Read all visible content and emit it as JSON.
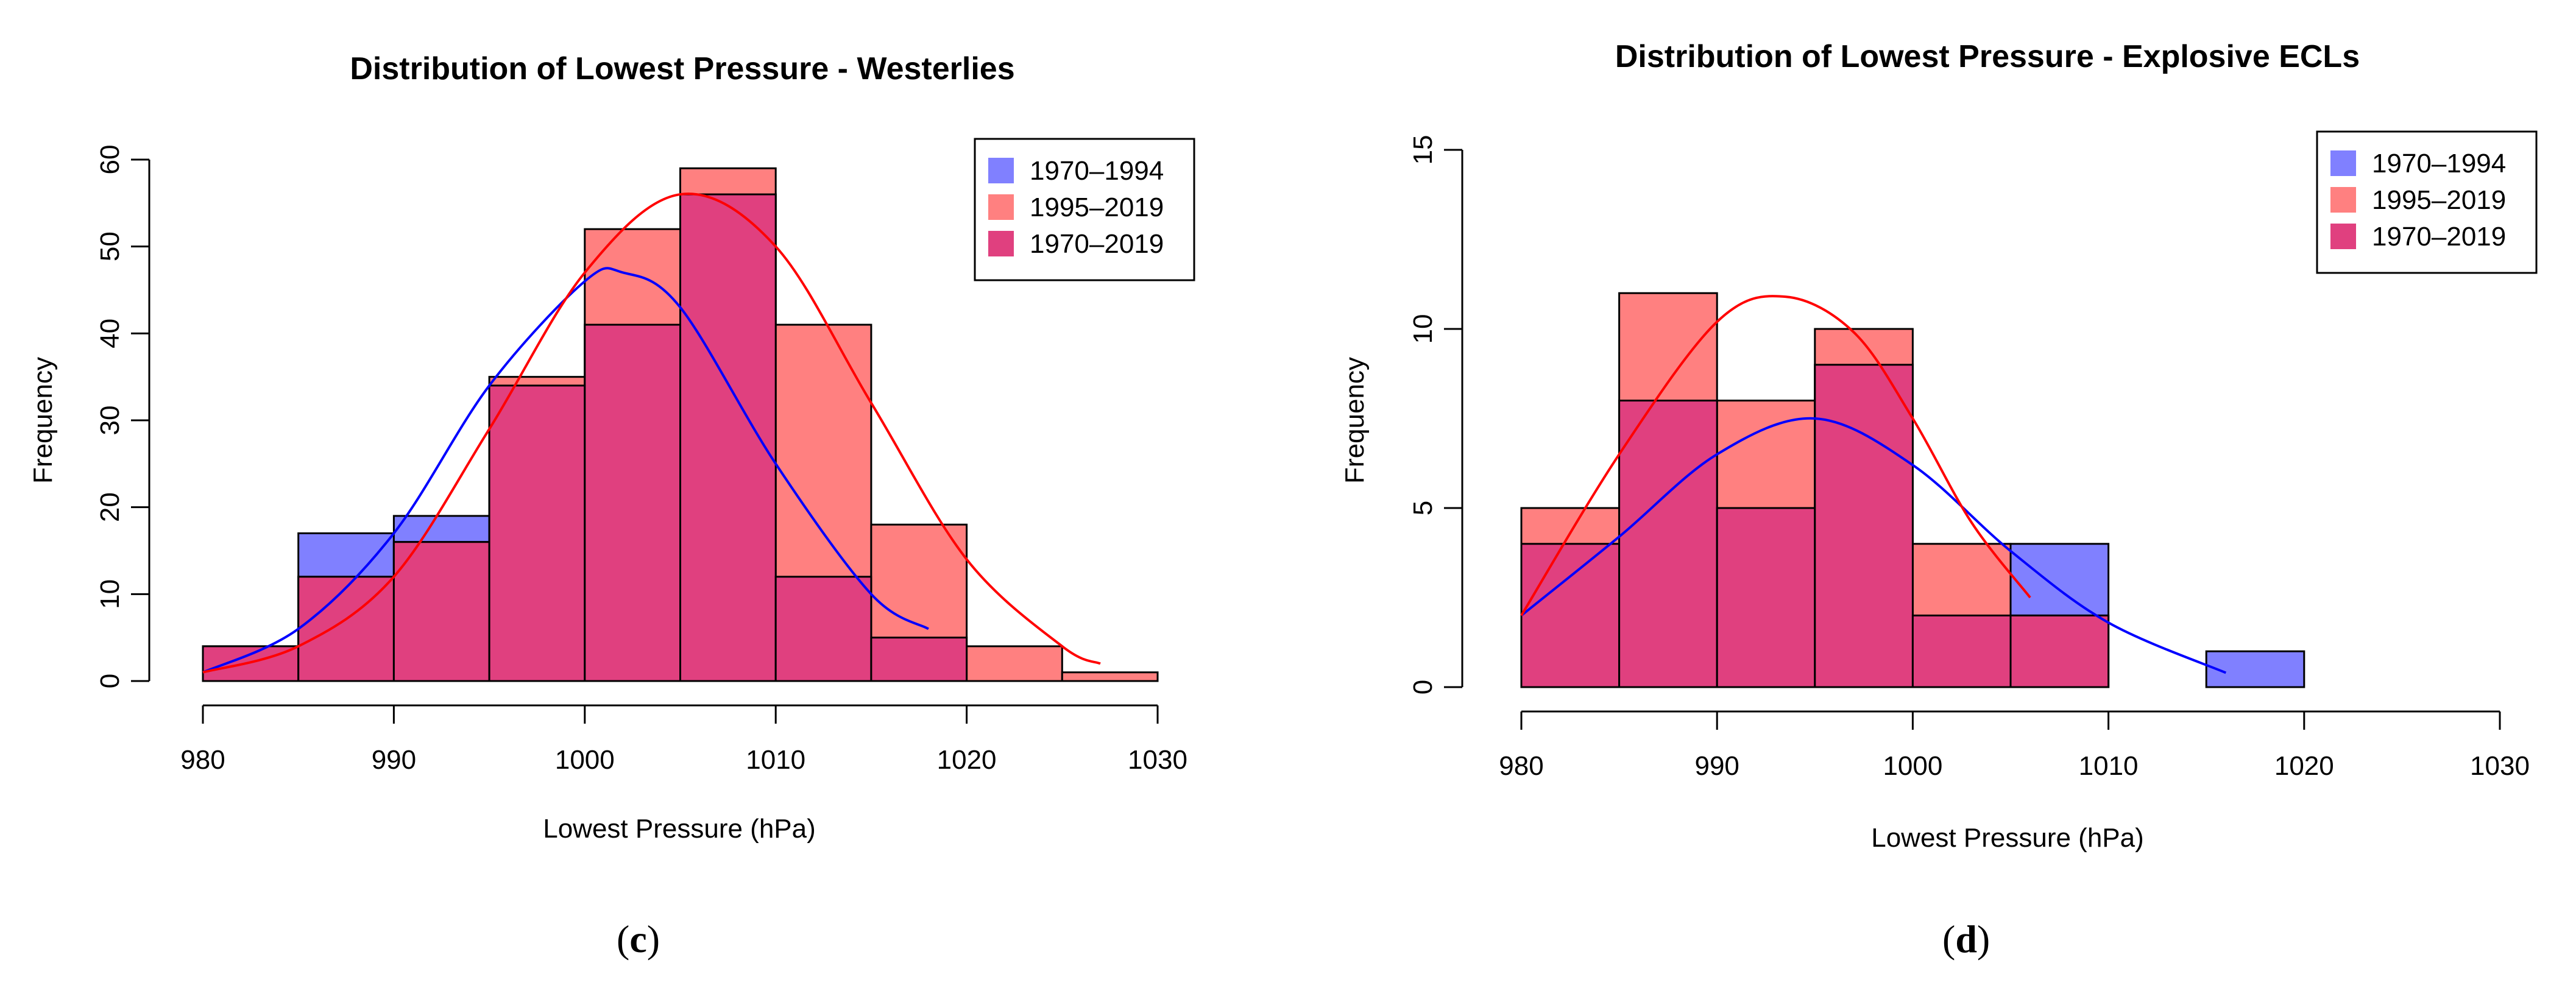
{
  "chart_data": [
    {
      "type": "bar",
      "panel": "c",
      "title": "Distribution of Lowest Pressure - Westerlies",
      "xlabel": "Lowest Pressure (hPa)",
      "ylabel": "Frequency",
      "xlim": [
        980,
        1030
      ],
      "ylim": [
        0,
        60
      ],
      "xticks": [
        980,
        990,
        1000,
        1010,
        1020,
        1030
      ],
      "yticks": [
        0,
        10,
        20,
        30,
        40,
        50,
        60
      ],
      "bin_edges": [
        980,
        985,
        990,
        995,
        1000,
        1005,
        1010,
        1015,
        1020,
        1025,
        1030
      ],
      "series": [
        {
          "name": "1970-1994",
          "color": "#8080ff",
          "values": [
            4,
            17,
            19,
            34,
            41,
            56,
            12,
            5,
            0,
            0
          ]
        },
        {
          "name": "1995-2019",
          "color": "#ff8080",
          "values": [
            4,
            12,
            16,
            35,
            52,
            59,
            41,
            18,
            4,
            1
          ]
        },
        {
          "name": "1970-2019",
          "color": "#e0407f",
          "values": [
            4,
            12,
            16,
            34,
            41,
            56,
            12,
            5,
            0,
            0
          ]
        }
      ],
      "curves": [
        {
          "name": "1970-1994 fit",
          "color": "#0000ff",
          "x": [
            980,
            985,
            990,
            995,
            1000,
            1002,
            1005,
            1010,
            1015,
            1018
          ],
          "y": [
            1,
            6,
            17,
            34,
            46,
            47,
            43,
            25,
            10,
            6
          ]
        },
        {
          "name": "1995-2019 fit",
          "color": "#ff0000",
          "x": [
            980,
            985,
            990,
            995,
            1000,
            1005,
            1010,
            1015,
            1020,
            1025,
            1027
          ],
          "y": [
            1,
            4,
            12,
            29,
            47,
            56,
            50,
            32,
            14,
            4,
            2
          ]
        }
      ],
      "legend": {
        "position": "top-right",
        "entries": [
          "1970–1994",
          "1995–2019",
          "1970–2019"
        ]
      },
      "caption": "c"
    },
    {
      "type": "bar",
      "panel": "d",
      "title": "Distribution of Lowest Pressure - Explosive ECLs",
      "xlabel": "Lowest Pressure (hPa)",
      "ylabel": "Frequency",
      "xlim": [
        980,
        1030
      ],
      "ylim": [
        0,
        15
      ],
      "xticks": [
        980,
        990,
        1000,
        1010,
        1020,
        1030
      ],
      "yticks": [
        0,
        5,
        10,
        15
      ],
      "bin_edges": [
        980,
        985,
        990,
        995,
        1000,
        1005,
        1010,
        1015,
        1020
      ],
      "series": [
        {
          "name": "1970-1994",
          "color": "#8080ff",
          "values": [
            4,
            8,
            5,
            9,
            2,
            4,
            0,
            1
          ]
        },
        {
          "name": "1995-2019",
          "color": "#ff8080",
          "values": [
            5,
            11,
            8,
            10,
            4,
            2,
            0,
            0
          ]
        },
        {
          "name": "1970-2019",
          "color": "#e0407f",
          "values": [
            4,
            8,
            5,
            9,
            2,
            2,
            0,
            0
          ]
        }
      ],
      "curves": [
        {
          "name": "1970-1994 fit",
          "color": "#0000ff",
          "x": [
            980,
            985,
            990,
            995,
            1000,
            1005,
            1010,
            1016
          ],
          "y": [
            2,
            4.2,
            6.5,
            7.5,
            6.2,
            3.8,
            1.8,
            0.4
          ]
        },
        {
          "name": "1995-2019 fit",
          "color": "#ff0000",
          "x": [
            980,
            985,
            990,
            993.5,
            997,
            1000,
            1003,
            1006
          ],
          "y": [
            2,
            6.5,
            10.2,
            10.9,
            9.9,
            7.5,
            4.6,
            2.5
          ]
        }
      ],
      "legend": {
        "position": "top-right",
        "entries": [
          "1970–1994",
          "1995–2019",
          "1970–2019"
        ]
      },
      "caption": "d"
    }
  ],
  "colors": {
    "blue_fill": "#8080ff",
    "red_fill": "#ff8080",
    "overlap_fill": "#e0407f",
    "blue_line": "#0000ff",
    "red_line": "#ff0000"
  }
}
